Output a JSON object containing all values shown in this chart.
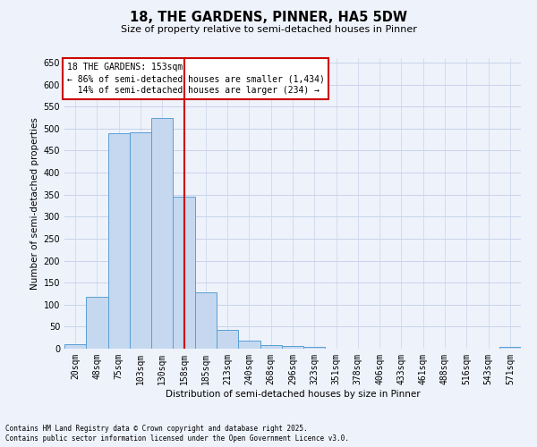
{
  "title": "18, THE GARDENS, PINNER, HA5 5DW",
  "subtitle": "Size of property relative to semi-detached houses in Pinner",
  "xlabel": "Distribution of semi-detached houses by size in Pinner",
  "ylabel": "Number of semi-detached properties",
  "footer_line1": "Contains HM Land Registry data © Crown copyright and database right 2025.",
  "footer_line2": "Contains public sector information licensed under the Open Government Licence v3.0.",
  "property_label": "18 THE GARDENS: 153sqm",
  "pct_smaller": 86,
  "count_smaller": 1434,
  "pct_larger": 14,
  "count_larger": 234,
  "vline_category": "158sqm",
  "bar_categories": [
    "20sqm",
    "48sqm",
    "75sqm",
    "103sqm",
    "130sqm",
    "158sqm",
    "185sqm",
    "213sqm",
    "240sqm",
    "268sqm",
    "296sqm",
    "323sqm",
    "351sqm",
    "378sqm",
    "406sqm",
    "433sqm",
    "461sqm",
    "488sqm",
    "516sqm",
    "543sqm",
    "571sqm"
  ],
  "bar_values": [
    11,
    118,
    490,
    492,
    524,
    345,
    128,
    42,
    19,
    8,
    7,
    4,
    0,
    0,
    0,
    0,
    0,
    0,
    0,
    0,
    5
  ],
  "bar_color": "#c5d8f0",
  "bar_edge_color": "#5a9fd4",
  "vline_color": "#cc0000",
  "annotation_box_color": "#cc0000",
  "background_color": "#eef2fb",
  "grid_color": "#c8d4ea",
  "ylim": [
    0,
    660
  ],
  "yticks": [
    0,
    50,
    100,
    150,
    200,
    250,
    300,
    350,
    400,
    450,
    500,
    550,
    600,
    650
  ],
  "title_fontsize": 10.5,
  "subtitle_fontsize": 8,
  "tick_fontsize": 7,
  "ylabel_fontsize": 7.5,
  "xlabel_fontsize": 7.5,
  "annotation_fontsize": 7,
  "footer_fontsize": 5.5
}
